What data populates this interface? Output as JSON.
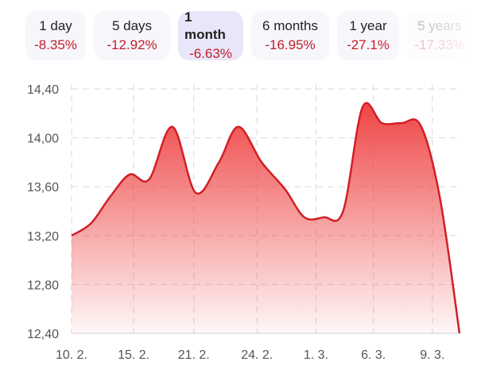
{
  "ranges": [
    {
      "label": "1 day",
      "change": "-8.35%",
      "selected": false
    },
    {
      "label": "5 days",
      "change": "-12.92%",
      "selected": false
    },
    {
      "label": "1 month",
      "change": "-6.63%",
      "selected": true
    },
    {
      "label": "6 months",
      "change": "-16.95%",
      "selected": false
    },
    {
      "label": "1 year",
      "change": "-27.1%",
      "selected": false
    },
    {
      "label": "5 years",
      "change": "-17.33%",
      "selected": false
    }
  ],
  "colors": {
    "line": "#d01f26",
    "fill_top": "#ee3b3b",
    "change_negative": "#c41d2a",
    "grid": "#d9d9d9"
  },
  "chart_data": {
    "type": "area",
    "ylim": [
      12.4,
      14.4
    ],
    "y_ticks": [
      "12,40",
      "12,80",
      "13,20",
      "13,60",
      "14,00",
      "14,40"
    ],
    "x_ticks": [
      "10. 2.",
      "15. 2.",
      "21. 2.",
      "24. 2.",
      "1. 3.",
      "6. 3.",
      "9. 3."
    ],
    "grid": true,
    "series": [
      {
        "values": [
          [
            0.0,
            13.2
          ],
          [
            0.05,
            13.3
          ],
          [
            0.1,
            13.52
          ],
          [
            0.15,
            13.7
          ],
          [
            0.2,
            13.66
          ],
          [
            0.26,
            14.09
          ],
          [
            0.32,
            13.55
          ],
          [
            0.38,
            13.8
          ],
          [
            0.43,
            14.09
          ],
          [
            0.49,
            13.8
          ],
          [
            0.55,
            13.58
          ],
          [
            0.6,
            13.35
          ],
          [
            0.65,
            13.35
          ],
          [
            0.7,
            13.4
          ],
          [
            0.75,
            14.25
          ],
          [
            0.8,
            14.12
          ],
          [
            0.85,
            14.12
          ],
          [
            0.9,
            14.1
          ],
          [
            0.95,
            13.5
          ],
          [
            1.0,
            12.4
          ]
        ]
      }
    ]
  }
}
